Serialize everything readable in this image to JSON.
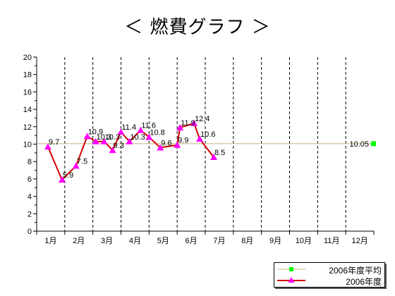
{
  "chart_data": {
    "type": "line",
    "title": "＜ 燃費グラフ ＞",
    "xlabel": "",
    "ylabel": "",
    "ylim": [
      0,
      20
    ],
    "yticks": [
      "0",
      "2",
      "4",
      "6",
      "8",
      "10",
      "12",
      "14",
      "16",
      "18",
      "20"
    ],
    "categories": [
      "1月",
      "2月",
      "3月",
      "4月",
      "5月",
      "6月",
      "7月",
      "8月",
      "9月",
      "10月",
      "11月",
      "12月"
    ],
    "xlim": [
      1,
      13
    ],
    "grid": "vertical dashed month separators",
    "legend_position": "bottom-right",
    "series": [
      {
        "name": "2006年度",
        "color": "#d40000",
        "marker_color": "#ff00ff",
        "marker": "triangle",
        "points": [
          {
            "x": 1.4,
            "y": 9.7,
            "label": "9.7"
          },
          {
            "x": 1.9,
            "y": 5.9,
            "label": "5.9"
          },
          {
            "x": 2.4,
            "y": 7.5,
            "label": "7.5"
          },
          {
            "x": 2.8,
            "y": 10.9,
            "label": "10.9"
          },
          {
            "x": 3.1,
            "y": 10.3,
            "label": "10.3"
          },
          {
            "x": 3.4,
            "y": 10.3,
            "label": "10.3"
          },
          {
            "x": 3.7,
            "y": 9.3,
            "label": "9.3"
          },
          {
            "x": 4.0,
            "y": 11.4,
            "label": "11.4"
          },
          {
            "x": 4.3,
            "y": 10.3,
            "label": "10.3"
          },
          {
            "x": 4.7,
            "y": 11.6,
            "label": "11.6"
          },
          {
            "x": 5.0,
            "y": 10.8,
            "label": "10.8"
          },
          {
            "x": 5.4,
            "y": 9.6,
            "label": "9.6"
          },
          {
            "x": 6.0,
            "y": 9.9,
            "label": "9.9"
          },
          {
            "x": 6.1,
            "y": 11.9,
            "label": "11.9"
          },
          {
            "x": 6.6,
            "y": 12.4,
            "label": "12.4"
          },
          {
            "x": 6.8,
            "y": 10.6,
            "label": "10.6"
          },
          {
            "x": 7.3,
            "y": 8.5,
            "label": "8.5"
          }
        ]
      },
      {
        "name": "2006年度平均",
        "color": "#c8b480",
        "marker_color": "#00ff00",
        "marker": "square",
        "value": 10.05,
        "label": "10.05"
      }
    ]
  }
}
